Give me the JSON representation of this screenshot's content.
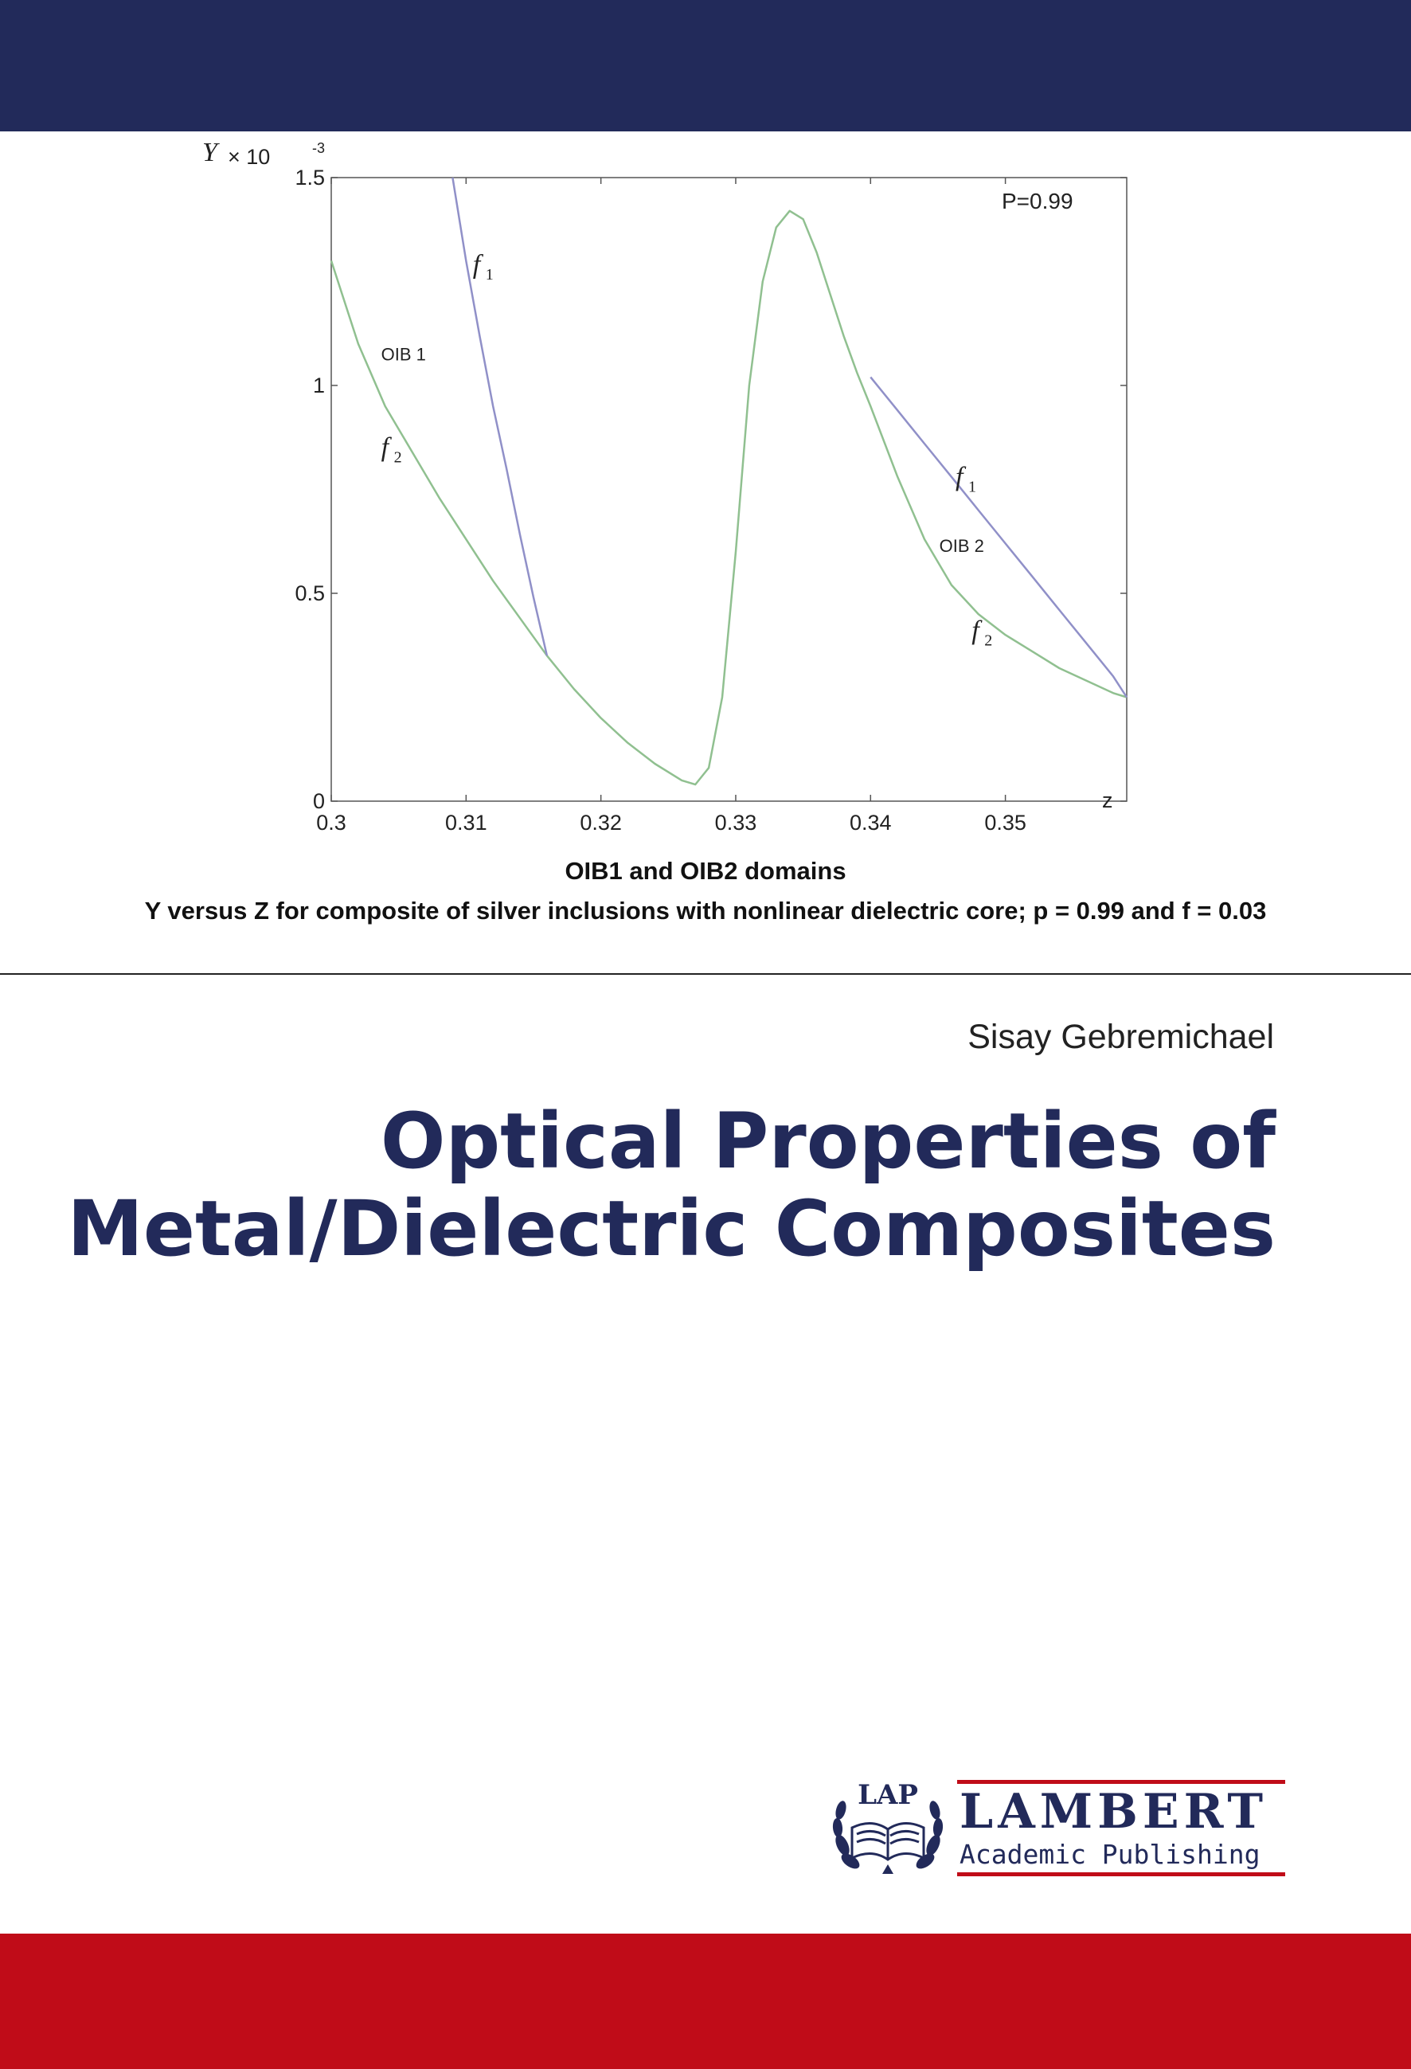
{
  "cover": {
    "author": "Sisay Gebremichael",
    "title_line1": "Optical Properties of",
    "title_line2": "Metal/Dielectric Composites",
    "caption_line1": "OIB1 and OIB2 domains",
    "caption_line2": "Y versus Z for composite of silver inclusions with nonlinear dielectric core; p = 0.99 and f = 0.03",
    "colors": {
      "top_band": "#222a5a",
      "bottom_band": "#c00c18",
      "title": "#222a5a"
    }
  },
  "publisher": {
    "emblem_text": "LAP",
    "name": "LAMBERT",
    "subtitle": "Academic Publishing",
    "icons": [
      "open-book-icon",
      "laurel-wreath-icon"
    ]
  },
  "chart_data": {
    "type": "line",
    "ylabel": "Y",
    "y_multiplier": "× 10",
    "y_exponent": "-3",
    "xlabel": "z",
    "annotation": "P=0.99",
    "xlim": [
      0.3,
      0.359
    ],
    "ylim": [
      0,
      1.5
    ],
    "x_ticks": [
      "0.3",
      "0.31",
      "0.32",
      "0.33",
      "0.34",
      "0.35"
    ],
    "y_ticks": [
      "0",
      "0.5",
      "1",
      "1.5"
    ],
    "series": [
      {
        "name": "f2",
        "color": "#90c090",
        "x": [
          0.3,
          0.302,
          0.304,
          0.306,
          0.308,
          0.31,
          0.312,
          0.314,
          0.316,
          0.318,
          0.32,
          0.322,
          0.324,
          0.326,
          0.327,
          0.328,
          0.329,
          0.33,
          0.331,
          0.332,
          0.333,
          0.334,
          0.335,
          0.336,
          0.337,
          0.338,
          0.339,
          0.34,
          0.342,
          0.344,
          0.346,
          0.348,
          0.35,
          0.352,
          0.354,
          0.356,
          0.358,
          0.359
        ],
        "y": [
          1.3,
          1.1,
          0.95,
          0.84,
          0.73,
          0.63,
          0.53,
          0.44,
          0.35,
          0.27,
          0.2,
          0.14,
          0.09,
          0.05,
          0.04,
          0.08,
          0.25,
          0.6,
          1.0,
          1.25,
          1.38,
          1.42,
          1.4,
          1.32,
          1.22,
          1.12,
          1.03,
          0.95,
          0.78,
          0.63,
          0.52,
          0.45,
          0.4,
          0.36,
          0.32,
          0.29,
          0.26,
          0.25
        ]
      },
      {
        "name": "f1",
        "color": "#9090c8",
        "x": [
          0.309,
          0.31,
          0.311,
          0.312,
          0.313,
          0.314,
          0.315,
          0.316
        ],
        "y": [
          1.5,
          1.3,
          1.12,
          0.95,
          0.8,
          0.64,
          0.49,
          0.35
        ]
      },
      {
        "name": "f1",
        "color": "#9090c8",
        "x": [
          0.34,
          0.342,
          0.344,
          0.346,
          0.348,
          0.35,
          0.352,
          0.354,
          0.356,
          0.358,
          0.359
        ],
        "y": [
          1.02,
          0.94,
          0.86,
          0.78,
          0.7,
          0.62,
          0.54,
          0.46,
          0.38,
          0.3,
          0.25
        ]
      }
    ],
    "labels": [
      {
        "text": "f",
        "sub": "1",
        "x": 0.3105,
        "y": 1.27
      },
      {
        "text": "OIB 1",
        "x": 0.3037,
        "y": 1.06
      },
      {
        "text": "f",
        "sub": "2",
        "x": 0.3037,
        "y": 0.83
      },
      {
        "text": "f",
        "sub": "1",
        "x": 0.3463,
        "y": 0.76
      },
      {
        "text": "OIB 2",
        "x": 0.3451,
        "y": 0.6
      },
      {
        "text": "f",
        "sub": "2",
        "x": 0.3475,
        "y": 0.39
      }
    ]
  }
}
